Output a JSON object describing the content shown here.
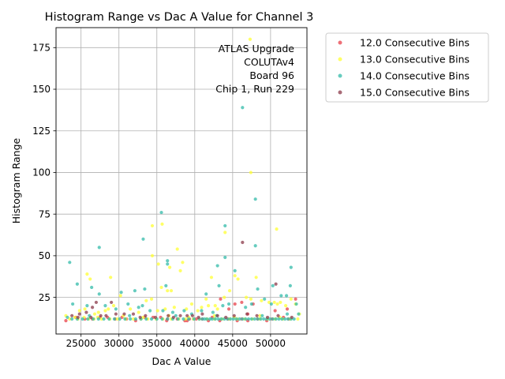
{
  "chart_data": {
    "type": "scatter",
    "title": "Histogram Range vs Dac A Value for Channel 3",
    "xlabel": "Dac A Value",
    "ylabel": "Histogram Range",
    "xlim": [
      21700,
      54800
    ],
    "ylim": [
      3,
      187
    ],
    "xticks": [
      25000,
      30000,
      35000,
      40000,
      45000,
      50000
    ],
    "yticks": [
      25,
      50,
      75,
      100,
      125,
      150,
      175
    ],
    "grid": true,
    "legend_position": "outside-right",
    "annotation": [
      "ATLAS Upgrade",
      "COLUTAv4",
      "Board 96",
      "Chip 1, Run 229"
    ],
    "series": [
      {
        "name": "12.0 Consecutive Bins",
        "color": "#e8404a",
        "points": [
          [
            23000,
            11
          ],
          [
            32200,
            11
          ],
          [
            36300,
            11
          ],
          [
            39000,
            11
          ],
          [
            43300,
            11
          ],
          [
            45600,
            11
          ],
          [
            46200,
            12
          ],
          [
            47000,
            11
          ],
          [
            49500,
            11
          ],
          [
            46200,
            22
          ],
          [
            45300,
            21
          ],
          [
            44500,
            18
          ],
          [
            43400,
            24
          ],
          [
            47000,
            15
          ],
          [
            47700,
            21
          ],
          [
            50600,
            17
          ],
          [
            52200,
            18
          ],
          [
            53300,
            24
          ],
          [
            51700,
            13
          ],
          [
            25500,
            12
          ],
          [
            27500,
            13
          ],
          [
            29500,
            12
          ],
          [
            30400,
            13
          ],
          [
            34500,
            13
          ],
          [
            36400,
            12
          ],
          [
            39300,
            12
          ],
          [
            41000,
            12
          ],
          [
            24300,
            13
          ],
          [
            26500,
            12
          ],
          [
            28500,
            13
          ],
          [
            31000,
            12
          ],
          [
            33400,
            13
          ],
          [
            35500,
            13
          ],
          [
            37700,
            12
          ],
          [
            40200,
            12
          ],
          [
            42300,
            13
          ],
          [
            44400,
            12
          ],
          [
            48300,
            12
          ],
          [
            50200,
            12
          ],
          [
            52400,
            12
          ],
          [
            38700,
            11
          ],
          [
            41800,
            11
          ]
        ]
      },
      {
        "name": "13.0 Consecutive Bins",
        "color": "#ffff33",
        "points": [
          [
            47300,
            180
          ],
          [
            47400,
            100
          ],
          [
            44000,
            64
          ],
          [
            50800,
            66
          ],
          [
            35700,
            69
          ],
          [
            34400,
            68
          ],
          [
            34400,
            50
          ],
          [
            37700,
            54
          ],
          [
            38400,
            46
          ],
          [
            36700,
            43
          ],
          [
            38100,
            41
          ],
          [
            35200,
            45
          ],
          [
            36900,
            29
          ],
          [
            36400,
            29
          ],
          [
            25800,
            39
          ],
          [
            26200,
            36
          ],
          [
            28900,
            37
          ],
          [
            35600,
            31
          ],
          [
            42200,
            37
          ],
          [
            45300,
            38
          ],
          [
            45700,
            36
          ],
          [
            48100,
            37
          ],
          [
            41800,
            20
          ],
          [
            42700,
            20
          ],
          [
            43900,
            25
          ],
          [
            44600,
            29
          ],
          [
            46800,
            25
          ],
          [
            47400,
            24
          ],
          [
            48800,
            23
          ],
          [
            49800,
            22
          ],
          [
            50500,
            22
          ],
          [
            50900,
            21
          ],
          [
            51300,
            22
          ],
          [
            52000,
            20
          ],
          [
            52700,
            24
          ],
          [
            53300,
            21
          ],
          [
            53800,
            15
          ],
          [
            23000,
            14
          ],
          [
            24200,
            13
          ],
          [
            24800,
            17
          ],
          [
            25500,
            18
          ],
          [
            26800,
            15
          ],
          [
            27300,
            16
          ],
          [
            28200,
            17
          ],
          [
            28600,
            18
          ],
          [
            29300,
            20
          ],
          [
            30200,
            26
          ],
          [
            31500,
            18
          ],
          [
            32600,
            16
          ],
          [
            33600,
            23
          ],
          [
            34300,
            24
          ],
          [
            35100,
            17
          ],
          [
            36100,
            18
          ],
          [
            37300,
            19
          ],
          [
            38900,
            18
          ],
          [
            39600,
            21
          ],
          [
            40400,
            17
          ],
          [
            40900,
            19
          ],
          [
            41500,
            24
          ],
          [
            43000,
            18
          ],
          [
            23500,
            12
          ],
          [
            24600,
            12
          ],
          [
            25400,
            13
          ],
          [
            26000,
            12
          ],
          [
            26700,
            12
          ],
          [
            27700,
            12
          ],
          [
            28800,
            12
          ],
          [
            29800,
            12
          ],
          [
            30900,
            12
          ],
          [
            31900,
            12
          ],
          [
            32900,
            12
          ],
          [
            33800,
            12
          ],
          [
            34900,
            12
          ],
          [
            35800,
            12
          ],
          [
            36900,
            12
          ],
          [
            37900,
            12
          ],
          [
            38800,
            12
          ],
          [
            39800,
            12
          ],
          [
            40600,
            12
          ],
          [
            41600,
            12
          ],
          [
            42600,
            12
          ],
          [
            43600,
            12
          ],
          [
            44600,
            12
          ],
          [
            45600,
            12
          ],
          [
            46600,
            12
          ],
          [
            47600,
            12
          ],
          [
            48600,
            12
          ],
          [
            49600,
            12
          ],
          [
            50600,
            12
          ],
          [
            51600,
            12
          ],
          [
            52600,
            12
          ],
          [
            53600,
            12
          ],
          [
            27200,
            13
          ],
          [
            33200,
            13
          ],
          [
            39200,
            13
          ],
          [
            45200,
            13
          ],
          [
            51200,
            13
          ],
          [
            30600,
            14
          ],
          [
            36600,
            14
          ],
          [
            42600,
            14
          ],
          [
            48600,
            14
          ]
        ]
      },
      {
        "name": "14.0 Consecutive Bins",
        "color": "#33bbaa",
        "points": [
          [
            46300,
            139
          ],
          [
            48000,
            84
          ],
          [
            35600,
            76
          ],
          [
            44000,
            68
          ],
          [
            33200,
            60
          ],
          [
            27400,
            55
          ],
          [
            48000,
            56
          ],
          [
            36400,
            47
          ],
          [
            36400,
            45
          ],
          [
            23500,
            46
          ],
          [
            44000,
            49
          ],
          [
            43000,
            44
          ],
          [
            52700,
            43
          ],
          [
            45300,
            41
          ],
          [
            36200,
            32
          ],
          [
            24500,
            33
          ],
          [
            33400,
            30
          ],
          [
            32100,
            29
          ],
          [
            26400,
            31
          ],
          [
            30300,
            28
          ],
          [
            27400,
            27
          ],
          [
            50300,
            32
          ],
          [
            52600,
            32
          ],
          [
            43200,
            32
          ],
          [
            48300,
            30
          ],
          [
            23900,
            21
          ],
          [
            25800,
            20
          ],
          [
            28200,
            20
          ],
          [
            29600,
            18
          ],
          [
            31200,
            21
          ],
          [
            32600,
            19
          ],
          [
            33100,
            20
          ],
          [
            34100,
            17
          ],
          [
            35800,
            17
          ],
          [
            37100,
            16
          ],
          [
            38600,
            17
          ],
          [
            39600,
            15
          ],
          [
            40900,
            17
          ],
          [
            41500,
            27
          ],
          [
            42400,
            16
          ],
          [
            43700,
            20
          ],
          [
            44500,
            21
          ],
          [
            46700,
            19
          ],
          [
            47500,
            21
          ],
          [
            49200,
            24
          ],
          [
            50100,
            21
          ],
          [
            51400,
            26
          ],
          [
            52100,
            26
          ],
          [
            53400,
            21
          ],
          [
            53700,
            15
          ],
          [
            23200,
            13
          ],
          [
            23800,
            12
          ],
          [
            24500,
            12
          ],
          [
            25200,
            12
          ],
          [
            25900,
            12
          ],
          [
            26600,
            12
          ],
          [
            27300,
            12
          ],
          [
            28000,
            12
          ],
          [
            28700,
            12
          ],
          [
            29400,
            12
          ],
          [
            30100,
            12
          ],
          [
            30800,
            12
          ],
          [
            31500,
            12
          ],
          [
            32200,
            12
          ],
          [
            32900,
            12
          ],
          [
            33600,
            12
          ],
          [
            34300,
            12
          ],
          [
            35000,
            12
          ],
          [
            35700,
            12
          ],
          [
            36400,
            12
          ],
          [
            37100,
            12
          ],
          [
            37800,
            12
          ],
          [
            38500,
            12
          ],
          [
            39200,
            12
          ],
          [
            39900,
            12
          ],
          [
            40600,
            12
          ],
          [
            41000,
            12
          ],
          [
            41300,
            12
          ],
          [
            41600,
            12
          ],
          [
            42000,
            12
          ],
          [
            42300,
            12
          ],
          [
            42700,
            12
          ],
          [
            43100,
            12
          ],
          [
            43500,
            12
          ],
          [
            43900,
            12
          ],
          [
            44300,
            12
          ],
          [
            44700,
            12
          ],
          [
            45100,
            12
          ],
          [
            45500,
            12
          ],
          [
            45900,
            12
          ],
          [
            46300,
            12
          ],
          [
            46700,
            12
          ],
          [
            47100,
            12
          ],
          [
            47500,
            12
          ],
          [
            47900,
            12
          ],
          [
            48300,
            12
          ],
          [
            48700,
            12
          ],
          [
            49100,
            12
          ],
          [
            49500,
            12
          ],
          [
            49900,
            12
          ],
          [
            50300,
            12
          ],
          [
            50700,
            12
          ],
          [
            51100,
            12
          ],
          [
            51500,
            12
          ],
          [
            51900,
            12
          ],
          [
            52300,
            12
          ],
          [
            52700,
            12
          ],
          [
            53100,
            12
          ],
          [
            26100,
            14
          ],
          [
            31400,
            14
          ],
          [
            37500,
            14
          ],
          [
            42900,
            14
          ],
          [
            48900,
            14
          ],
          [
            52200,
            15
          ]
        ]
      },
      {
        "name": "15.0 Consecutive Bins",
        "color": "#8b3a4a",
        "points": [
          [
            46300,
            58
          ],
          [
            50700,
            33
          ],
          [
            29000,
            22
          ],
          [
            27000,
            22
          ],
          [
            26500,
            19
          ],
          [
            25700,
            16
          ],
          [
            24800,
            15
          ],
          [
            23800,
            14
          ],
          [
            26300,
            13
          ],
          [
            27600,
            14
          ],
          [
            28300,
            14
          ],
          [
            29600,
            15
          ],
          [
            30700,
            15
          ],
          [
            31900,
            15
          ],
          [
            33500,
            14
          ],
          [
            34800,
            13
          ],
          [
            36500,
            14
          ],
          [
            38100,
            14
          ],
          [
            39000,
            14
          ],
          [
            39700,
            14
          ],
          [
            41000,
            15
          ],
          [
            43000,
            14
          ],
          [
            45200,
            14
          ],
          [
            46900,
            15
          ],
          [
            48200,
            14
          ],
          [
            51000,
            14
          ],
          [
            24600,
            13
          ],
          [
            32800,
            13
          ],
          [
            37200,
            13
          ],
          [
            40500,
            13
          ],
          [
            44100,
            13
          ],
          [
            49600,
            13
          ],
          [
            52800,
            13
          ]
        ]
      }
    ]
  }
}
